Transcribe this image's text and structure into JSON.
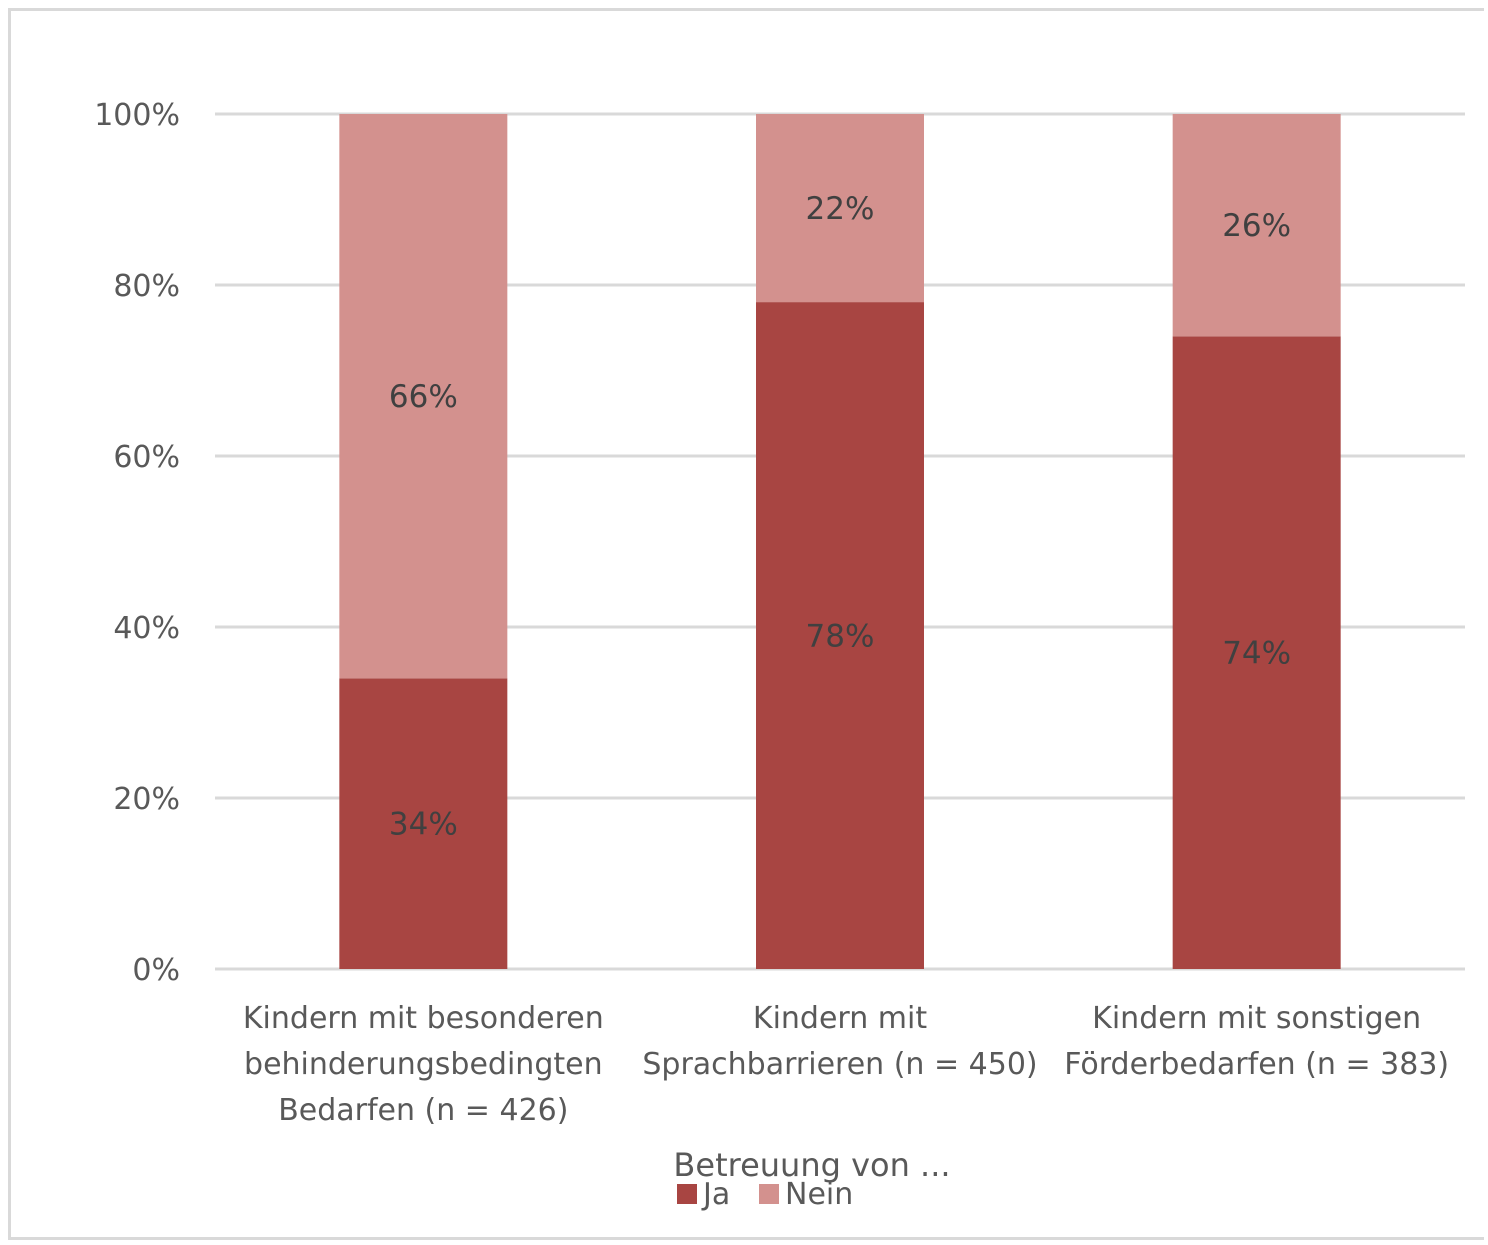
{
  "chart_data": {
    "type": "bar",
    "stacked": true,
    "categories": [
      [
        "Kindern mit besonderen",
        "behinderungsbedingten",
        "Bedarfen (n = 426)"
      ],
      [
        "Kindern mit",
        "Sprachbarrieren (n = 450)"
      ],
      [
        "Kindern mit sonstigen",
        "Förderbedarfen (n = 383)"
      ]
    ],
    "series": [
      {
        "name": "Ja",
        "values": [
          34,
          78,
          74
        ],
        "labels": [
          "34%",
          "78%",
          "74%"
        ],
        "color": "#a84542"
      },
      {
        "name": "Nein",
        "values": [
          66,
          22,
          26
        ],
        "labels": [
          "66%",
          "22%",
          "26%"
        ],
        "color": "#d3918e"
      }
    ],
    "title": "",
    "xlabel": "Betreuung von ...",
    "ylabel": "",
    "ylim": [
      0,
      100
    ],
    "yticks": [
      {
        "value": 0,
        "label": "0%"
      },
      {
        "value": 20,
        "label": "20%"
      },
      {
        "value": 40,
        "label": "40%"
      },
      {
        "value": 60,
        "label": "60%"
      },
      {
        "value": 80,
        "label": "80%"
      },
      {
        "value": 100,
        "label": "100%"
      }
    ],
    "grid": true,
    "legend_position": "bottom",
    "gridline_color": "#d9d9d9"
  }
}
